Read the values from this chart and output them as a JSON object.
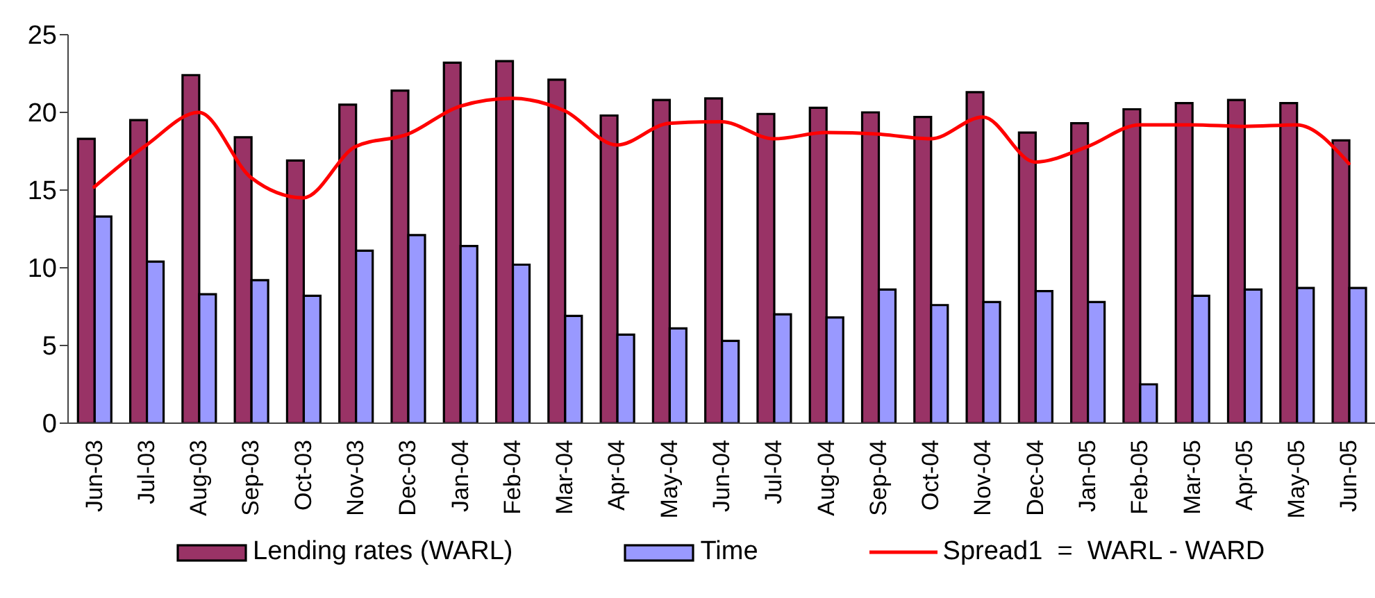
{
  "chart_data": {
    "type": "bar",
    "categories": [
      "Jun-03",
      "Jul-03",
      "Aug-03",
      "Sep-03",
      "Oct-03",
      "Nov-03",
      "Dec-03",
      "Jan-04",
      "Feb-04",
      "Mar-04",
      "Apr-04",
      "May-04",
      "Jun-04",
      "Jul-04",
      "Aug-04",
      "Sep-04",
      "Oct-04",
      "Nov-04",
      "Dec-04",
      "Jan-05",
      "Feb-05",
      "Mar-05",
      "Apr-05",
      "May-05",
      "Jun-05"
    ],
    "series": [
      {
        "name": "Lending rates (WARL)",
        "color": "#993366",
        "values": [
          18.3,
          19.5,
          22.4,
          18.4,
          16.9,
          20.5,
          21.4,
          23.2,
          23.3,
          22.1,
          19.8,
          20.8,
          20.9,
          19.9,
          20.3,
          20.0,
          19.7,
          21.3,
          18.7,
          19.3,
          20.2,
          20.6,
          20.8,
          20.6,
          18.2
        ]
      },
      {
        "name": "Time",
        "color": "#9999ff",
        "values": [
          13.3,
          10.4,
          8.3,
          9.2,
          8.2,
          11.1,
          12.1,
          11.4,
          10.2,
          6.9,
          5.7,
          6.1,
          5.3,
          7.0,
          6.8,
          8.6,
          7.6,
          7.8,
          8.5,
          7.8,
          2.5,
          8.2,
          8.6,
          8.7,
          8.7
        ]
      },
      {
        "name": "Spread1  =  WARL - WARD",
        "type": "line",
        "color": "#ff0000",
        "values": [
          15.2,
          17.9,
          20.0,
          15.8,
          14.5,
          17.8,
          18.6,
          20.4,
          20.9,
          20.1,
          17.9,
          19.3,
          19.4,
          18.3,
          18.7,
          18.6,
          18.3,
          19.7,
          16.8,
          17.8,
          19.2,
          19.2,
          19.1,
          19.2,
          16.7
        ]
      }
    ],
    "ylim": [
      0,
      25
    ],
    "yticks": [
      0,
      5,
      10,
      15,
      20,
      25
    ],
    "legend": "bottom"
  }
}
